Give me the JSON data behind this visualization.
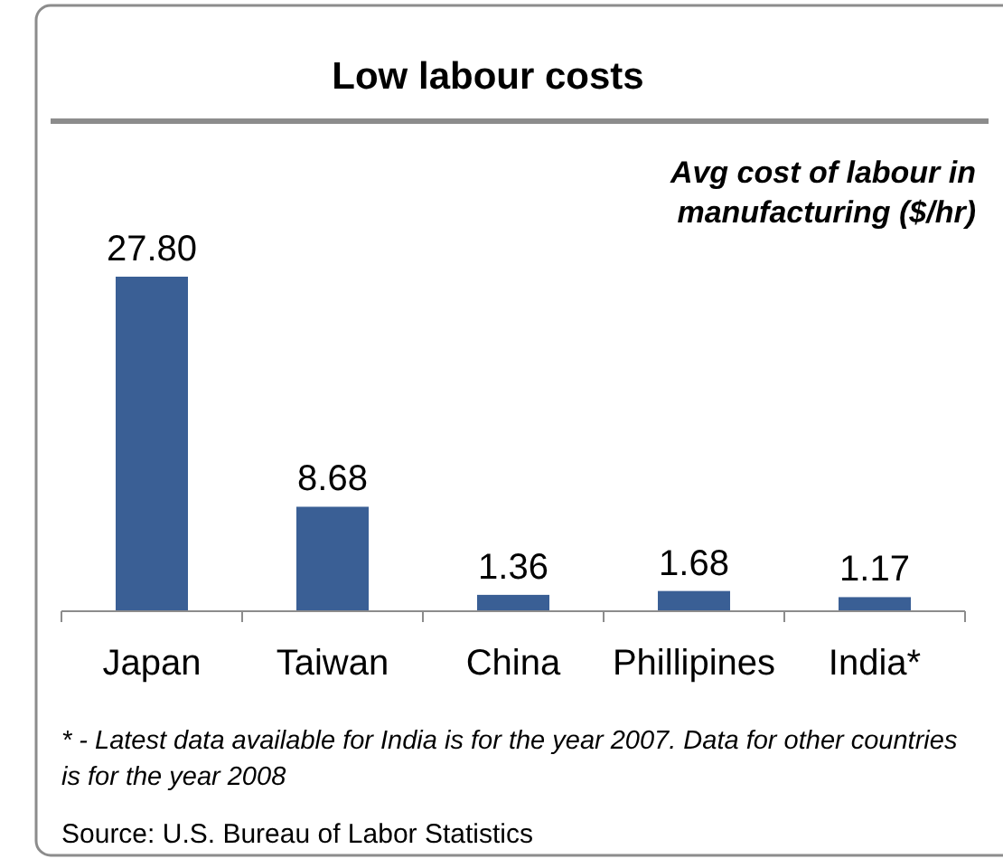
{
  "chart_data": {
    "type": "bar",
    "title": "Low labour costs",
    "subtitle": "Avg cost of labour in manufacturing ($/hr)",
    "categories": [
      "Japan",
      "Taiwan",
      "China",
      "Phillipines",
      "India*"
    ],
    "values": [
      27.8,
      8.68,
      1.36,
      1.68,
      1.17
    ],
    "value_labels": [
      "27.80",
      "8.68",
      "1.36",
      "1.68",
      "1.17"
    ],
    "color": "#3a5f95",
    "annotations": [
      "* - Latest data available for India is for the year 2007. Data for other countries is for the year 2008",
      "Source: U.S. Bureau of Labor Statistics"
    ]
  }
}
